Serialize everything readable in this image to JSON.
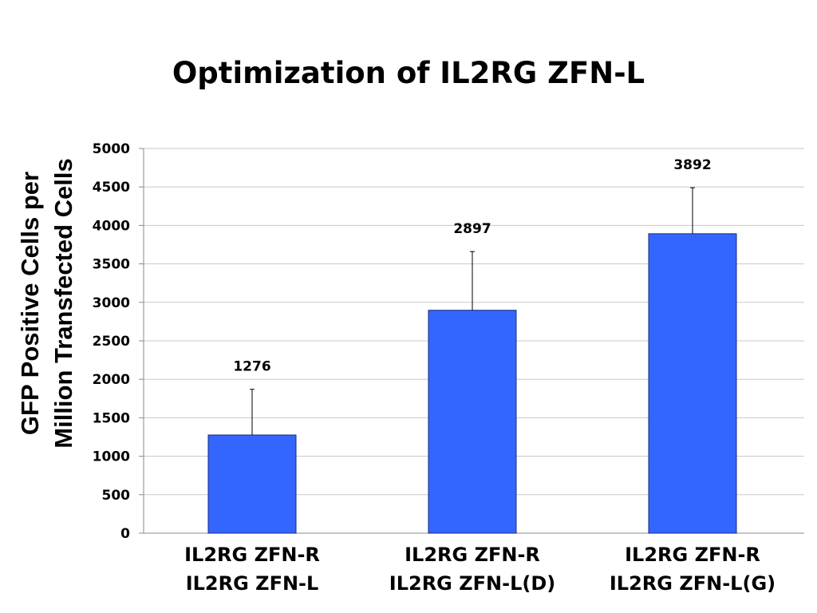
{
  "chart_data": {
    "type": "bar",
    "title": "Optimization of IL2RG ZFN-L",
    "ylabel_lines": [
      "GFP Positive Cells per",
      "Million Transfected Cells"
    ],
    "xlabel": "",
    "categories": [
      [
        "IL2RG ZFN-R",
        "IL2RG ZFN-L"
      ],
      [
        "IL2RG ZFN-R",
        "IL2RG ZFN-L(D)"
      ],
      [
        "IL2RG ZFN-R",
        "IL2RG ZFN-L(G)"
      ]
    ],
    "values": [
      1276,
      2897,
      3892
    ],
    "data_labels": [
      "1276",
      "2897",
      "3892"
    ],
    "error_upper": [
      1870,
      3660,
      4490
    ],
    "ylim": [
      0,
      5000
    ],
    "yticks": [
      0,
      500,
      1000,
      1500,
      2000,
      2500,
      3000,
      3500,
      4000,
      4500,
      5000
    ],
    "grid": true,
    "bar_color": "#3366ff",
    "bar_border_color": "#1a2a80"
  }
}
